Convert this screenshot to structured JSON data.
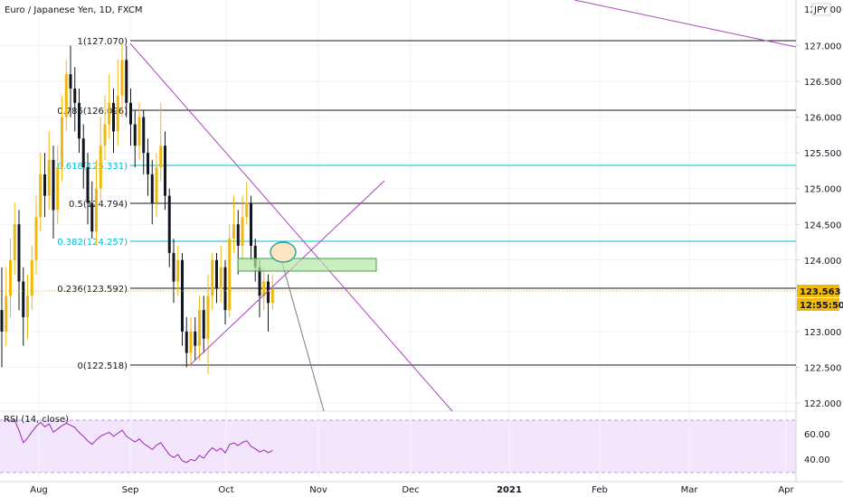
{
  "header": {
    "title": "Euro / Japanese Yen, 1D, FXCM"
  },
  "currency_badge": "JPY",
  "price_axis": {
    "ticks": [
      "127.000",
      "126.500",
      "126.000",
      "125.500",
      "125.000",
      "124.500",
      "124.000",
      "123.000",
      "122.500",
      "122.000"
    ],
    "top_partial": "127.500"
  },
  "price_badges": {
    "price": "123.563",
    "countdown": "12:55:50",
    "color": "#f0b90b"
  },
  "fib_levels": [
    {
      "label": "1(127.070)",
      "color": "#131722"
    },
    {
      "label": "0.786(126.096)",
      "color": "#131722"
    },
    {
      "label": "0.618(125.331)",
      "color": "#00bcd4"
    },
    {
      "label": "0.5(124.794)",
      "color": "#131722"
    },
    {
      "label": "0.382(124.257)",
      "color": "#00bcd4"
    },
    {
      "label": "0.236(123.592)",
      "color": "#131722"
    },
    {
      "label": "0(122.518)",
      "color": "#131722"
    }
  ],
  "time_axis": [
    "Aug",
    "Sep",
    "Oct",
    "Nov",
    "Dec",
    "2021",
    "Feb",
    "Mar",
    "Apr"
  ],
  "rsi": {
    "label": "RSI (14, close)",
    "ticks": [
      "60.00",
      "40.00"
    ]
  },
  "colors": {
    "candle_up": "#f0b90b",
    "candle_down": "#131722",
    "trend": "#ab47bc",
    "rsi_band": "#f3e5fc",
    "zone": "#b6e5a4"
  },
  "chart_data": {
    "type": "candlestick",
    "symbol": "EURJPY",
    "interval": "1D",
    "ylim": [
      121.9,
      127.55
    ],
    "fib_retracement": {
      "high": 127.07,
      "low": 122.518
    },
    "last_price": 123.563,
    "series": [
      {
        "name": "candles",
        "values": [
          [
            123.3,
            123.0,
            123.9,
            122.5
          ],
          [
            123.0,
            123.5,
            123.9,
            122.8
          ],
          [
            123.5,
            124.0,
            124.3,
            123.2
          ],
          [
            124.0,
            124.5,
            124.8,
            123.8
          ],
          [
            124.5,
            123.7,
            124.7,
            123.3
          ],
          [
            123.7,
            123.2,
            123.9,
            122.8
          ],
          [
            123.2,
            123.5,
            123.8,
            122.9
          ],
          [
            123.5,
            124.0,
            124.2,
            123.3
          ],
          [
            124.0,
            124.6,
            124.9,
            123.8
          ],
          [
            124.6,
            125.2,
            125.5,
            124.4
          ],
          [
            125.2,
            124.9,
            125.5,
            124.6
          ],
          [
            124.9,
            125.4,
            125.8,
            124.7
          ],
          [
            125.4,
            124.7,
            125.6,
            124.3
          ],
          [
            124.7,
            125.3,
            125.6,
            124.5
          ],
          [
            125.3,
            126.0,
            126.3,
            125.1
          ],
          [
            126.0,
            126.6,
            126.8,
            125.8
          ],
          [
            126.6,
            126.4,
            127.0,
            126.0
          ],
          [
            126.4,
            126.2,
            126.7,
            125.8
          ],
          [
            126.2,
            125.7,
            126.4,
            125.5
          ],
          [
            125.7,
            125.3,
            125.9,
            125.0
          ],
          [
            125.3,
            124.8,
            125.5,
            124.5
          ],
          [
            124.8,
            124.4,
            125.1,
            124.3
          ],
          [
            124.4,
            125.0,
            125.4,
            124.2
          ],
          [
            125.0,
            125.6,
            126.0,
            124.8
          ],
          [
            125.6,
            125.9,
            126.3,
            125.4
          ],
          [
            125.9,
            126.2,
            126.6,
            125.7
          ],
          [
            126.2,
            125.8,
            126.4,
            125.5
          ],
          [
            125.8,
            126.3,
            126.8,
            125.6
          ],
          [
            126.3,
            126.8,
            127.07,
            126.0
          ],
          [
            126.8,
            126.2,
            127.0,
            126.0
          ],
          [
            126.2,
            125.9,
            126.4,
            125.6
          ],
          [
            125.9,
            125.6,
            126.1,
            125.3
          ],
          [
            125.6,
            126.0,
            126.2,
            125.4
          ],
          [
            126.0,
            125.5,
            126.1,
            125.2
          ],
          [
            125.5,
            125.2,
            125.7,
            124.9
          ],
          [
            125.2,
            124.8,
            125.4,
            124.5
          ],
          [
            124.8,
            125.3,
            125.5,
            124.6
          ],
          [
            125.3,
            125.6,
            126.2,
            125.1
          ],
          [
            125.6,
            124.9,
            125.8,
            124.7
          ],
          [
            124.9,
            124.1,
            125.0,
            123.9
          ],
          [
            124.1,
            123.7,
            124.3,
            123.4
          ],
          [
            123.7,
            124.0,
            124.2,
            123.5
          ],
          [
            124.0,
            123.0,
            124.1,
            122.8
          ],
          [
            123.0,
            122.7,
            123.2,
            122.5
          ],
          [
            122.7,
            123.0,
            123.2,
            122.5
          ],
          [
            123.0,
            122.8,
            123.2,
            122.6
          ],
          [
            122.8,
            123.3,
            123.5,
            122.6
          ],
          [
            123.3,
            122.9,
            123.5,
            122.7
          ],
          [
            122.9,
            123.5,
            123.8,
            122.4
          ],
          [
            123.5,
            124.0,
            124.1,
            123.3
          ],
          [
            124.0,
            123.6,
            124.1,
            123.4
          ],
          [
            123.6,
            123.9,
            124.2,
            123.4
          ],
          [
            123.9,
            123.3,
            124.0,
            123.1
          ],
          [
            123.3,
            124.3,
            124.5,
            123.2
          ],
          [
            124.3,
            124.5,
            124.9,
            124.1
          ],
          [
            124.5,
            124.2,
            124.7,
            123.8
          ],
          [
            124.2,
            124.6,
            124.9,
            124.0
          ],
          [
            124.6,
            124.8,
            125.1,
            124.5
          ],
          [
            124.8,
            124.2,
            124.9,
            124.0
          ],
          [
            124.2,
            123.9,
            124.3,
            123.7
          ],
          [
            123.9,
            123.5,
            124.0,
            123.2
          ],
          [
            123.5,
            123.7,
            123.9,
            123.3
          ],
          [
            123.7,
            123.4,
            123.8,
            123.0
          ],
          [
            123.4,
            123.6,
            123.8,
            123.3
          ]
        ]
      }
    ]
  }
}
